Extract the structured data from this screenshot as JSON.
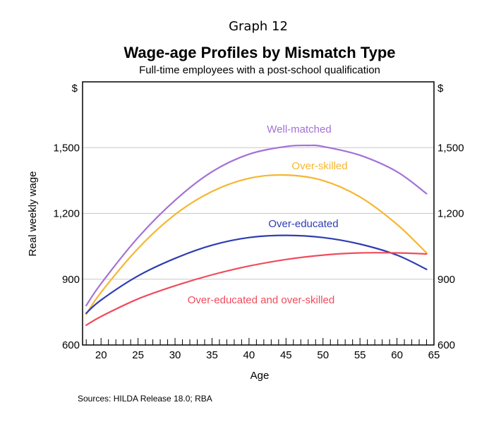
{
  "chart_data": {
    "type": "line",
    "graph_number": "Graph 12",
    "title": "Wage-age Profiles by Mismatch Type",
    "subtitle": "Full-time employees with a post-school qualification",
    "xlabel": "Age",
    "ylabel": "Real weekly wage",
    "y_unit_left": "$",
    "y_unit_right": "$",
    "xlim": [
      17.5,
      65
    ],
    "ylim": [
      600,
      1800
    ],
    "x_ticks": [
      20,
      25,
      30,
      35,
      40,
      45,
      50,
      55,
      60,
      65
    ],
    "y_ticks": [
      600,
      900,
      1200,
      1500
    ],
    "y_tick_labels": [
      "600",
      "900",
      "1,200",
      "1,500"
    ],
    "grid": "horizontal",
    "legend": "none",
    "series": [
      {
        "name": "Well-matched",
        "color": "#a371d6",
        "x": [
          18,
          20,
          25,
          30,
          35,
          40,
          45,
          48,
          50,
          55,
          60,
          64
        ],
        "y": [
          780,
          880,
          1090,
          1260,
          1390,
          1470,
          1505,
          1510,
          1505,
          1465,
          1390,
          1290
        ]
      },
      {
        "name": "Over-skilled",
        "color": "#f5b731",
        "x": [
          18,
          20,
          25,
          30,
          35,
          40,
          45,
          50,
          55,
          60,
          64
        ],
        "y": [
          740,
          840,
          1040,
          1195,
          1300,
          1360,
          1375,
          1350,
          1275,
          1150,
          1020
        ]
      },
      {
        "name": "Over-educated",
        "color": "#2e3db3",
        "x": [
          18,
          20,
          25,
          30,
          35,
          40,
          45,
          50,
          55,
          60,
          64
        ],
        "y": [
          745,
          805,
          915,
          995,
          1055,
          1090,
          1100,
          1090,
          1060,
          1010,
          945
        ]
      },
      {
        "name": "Over-educated and over-skilled",
        "color": "#ef4c5c",
        "x": [
          18,
          20,
          25,
          30,
          35,
          40,
          45,
          50,
          55,
          60,
          64
        ],
        "y": [
          690,
          730,
          810,
          870,
          920,
          960,
          990,
          1010,
          1020,
          1020,
          1015
        ]
      }
    ]
  },
  "source": "Sources:  HILDA Release 18.0; RBA"
}
